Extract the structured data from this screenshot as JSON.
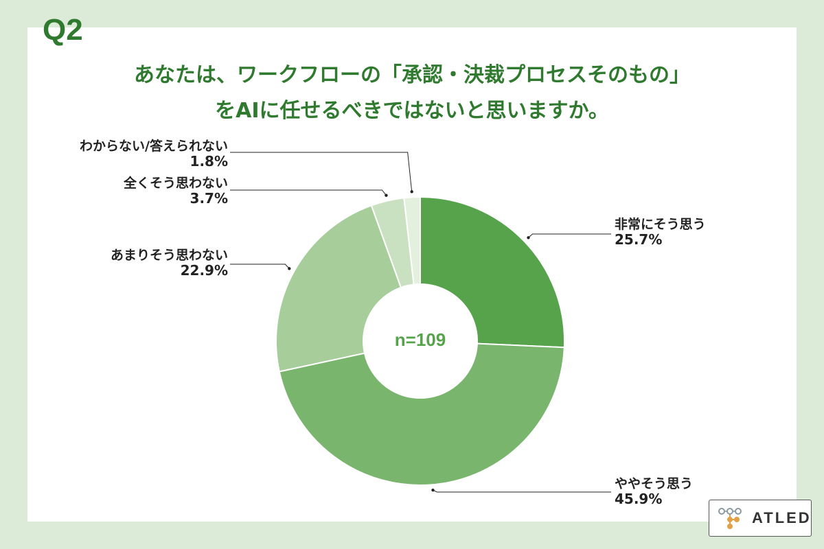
{
  "question": {
    "number": "Q2",
    "line1": "あなたは、ワークフローの「承認・決裁プロセスそのもの」",
    "line2": "をAIに任せるべきではないと思いますか。"
  },
  "chart_data": {
    "type": "pie",
    "donut": true,
    "center_label": "n=109",
    "slices": [
      {
        "label": "非常にそう思う",
        "value": 25.7,
        "value_label": "25.7%",
        "color": "#56a34c"
      },
      {
        "label": "ややそう思う",
        "value": 45.9,
        "value_label": "45.9%",
        "color": "#79b56d"
      },
      {
        "label": "あまりそう思わない",
        "value": 22.9,
        "value_label": "22.9%",
        "color": "#a6cd9a"
      },
      {
        "label": "全くそう思わない",
        "value": 3.7,
        "value_label": "3.7%",
        "color": "#c9e1c0"
      },
      {
        "label": "わからない/答えられない",
        "value": 1.8,
        "value_label": "1.8%",
        "color": "#e3f0dd"
      }
    ]
  },
  "logo": {
    "text": "ATLED"
  },
  "colors": {
    "background": "#dcebd7",
    "title": "#2f7a2f",
    "center_text": "#56a34c"
  }
}
